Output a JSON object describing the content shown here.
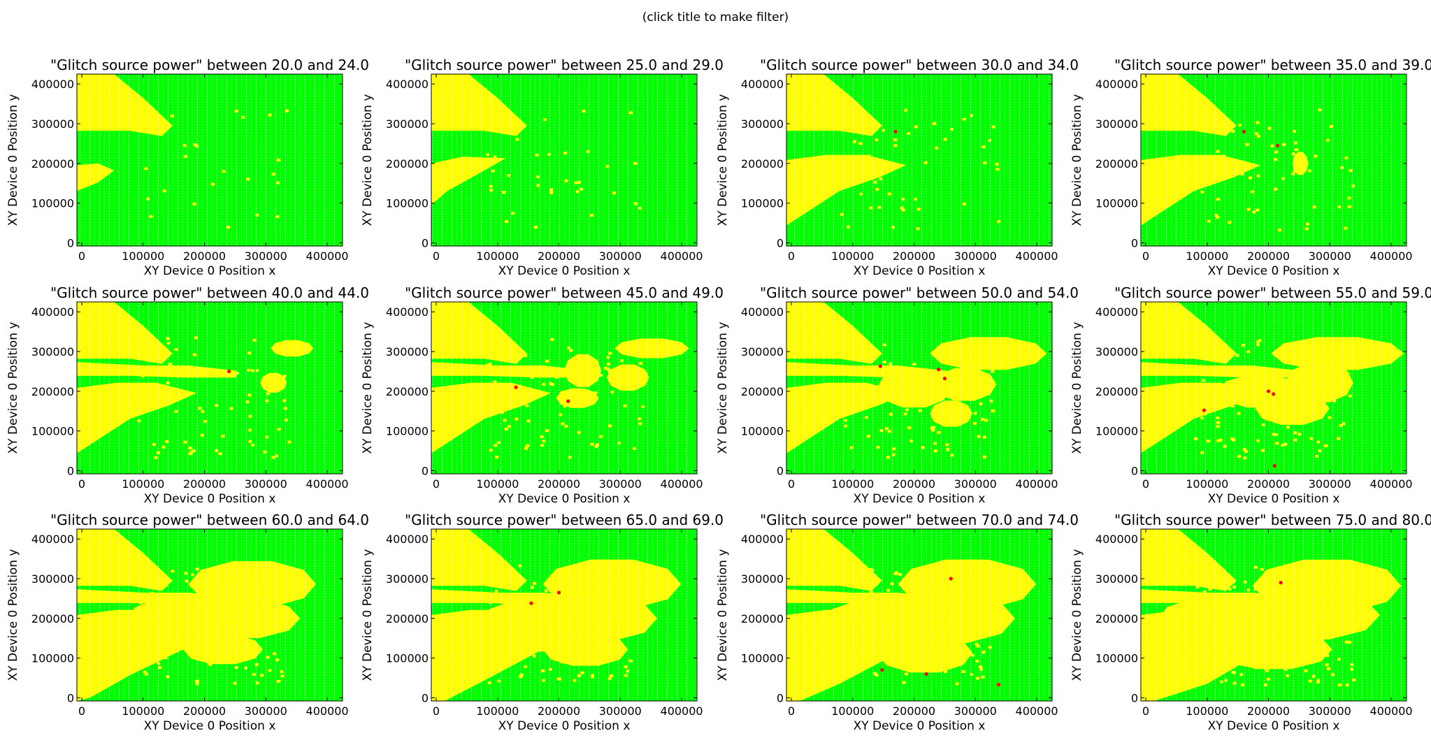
{
  "hint": "(click title to make filter)",
  "colors": {
    "pass": "#00ff00",
    "glitch": "#ffff00",
    "fault": "#ff0000",
    "frame": "#000000",
    "grid_dot": "#ffffff"
  },
  "shared_axes": {
    "xlabel": "XY Device 0 Position  x",
    "ylabel": "XY Device 0 Position  y",
    "xlim": [
      -8000,
      425000
    ],
    "ylim": [
      -8000,
      425000
    ],
    "xticks": [
      0,
      100000,
      200000,
      300000,
      400000
    ],
    "yticks": [
      0,
      100000,
      200000,
      300000,
      400000
    ]
  },
  "chart_data": [
    {
      "type": "scatter",
      "title": "\"Glitch source power\" between 20.0 and 24.0",
      "red_points": []
    },
    {
      "type": "scatter",
      "title": "\"Glitch source power\" between 25.0 and 29.0",
      "red_points": []
    },
    {
      "type": "scatter",
      "title": "\"Glitch source power\" between 30.0 and 34.0",
      "red_points": [
        [
          170000,
          280000
        ]
      ]
    },
    {
      "type": "scatter",
      "title": "\"Glitch source power\" between 35.0 and 39.0",
      "red_points": [
        [
          160000,
          280000
        ],
        [
          215000,
          245000
        ]
      ]
    },
    {
      "type": "scatter",
      "title": "\"Glitch source power\" between 40.0 and 44.0",
      "red_points": [
        [
          240000,
          250000
        ]
      ]
    },
    {
      "type": "scatter",
      "title": "\"Glitch source power\" between 45.0 and 49.0",
      "red_points": [
        [
          130000,
          210000
        ],
        [
          215000,
          175000
        ]
      ]
    },
    {
      "type": "scatter",
      "title": "\"Glitch source power\" between 50.0 and 54.0",
      "red_points": [
        [
          145000,
          263000
        ],
        [
          240000,
          255000
        ],
        [
          250000,
          232000
        ]
      ]
    },
    {
      "type": "scatter",
      "title": "\"Glitch source power\" between 55.0 and 59.0",
      "red_points": [
        [
          95000,
          152000
        ],
        [
          200000,
          200000
        ],
        [
          208000,
          193000
        ],
        [
          210000,
          12000
        ]
      ]
    },
    {
      "type": "scatter",
      "title": "\"Glitch source power\" between 60.0 and 64.0",
      "red_points": []
    },
    {
      "type": "scatter",
      "title": "\"Glitch source power\" between 65.0 and 69.0",
      "red_points": [
        [
          155000,
          238000
        ],
        [
          200000,
          265000
        ]
      ]
    },
    {
      "type": "scatter",
      "title": "\"Glitch source power\" between 70.0 and 74.0",
      "red_points": [
        [
          260000,
          300000
        ],
        [
          148000,
          70000
        ],
        [
          220000,
          60000
        ],
        [
          338000,
          33000
        ]
      ]
    },
    {
      "type": "scatter",
      "title": "\"Glitch source power\" between 75.0 and 80.0",
      "red_points": [
        [
          220000,
          290000
        ]
      ]
    }
  ]
}
